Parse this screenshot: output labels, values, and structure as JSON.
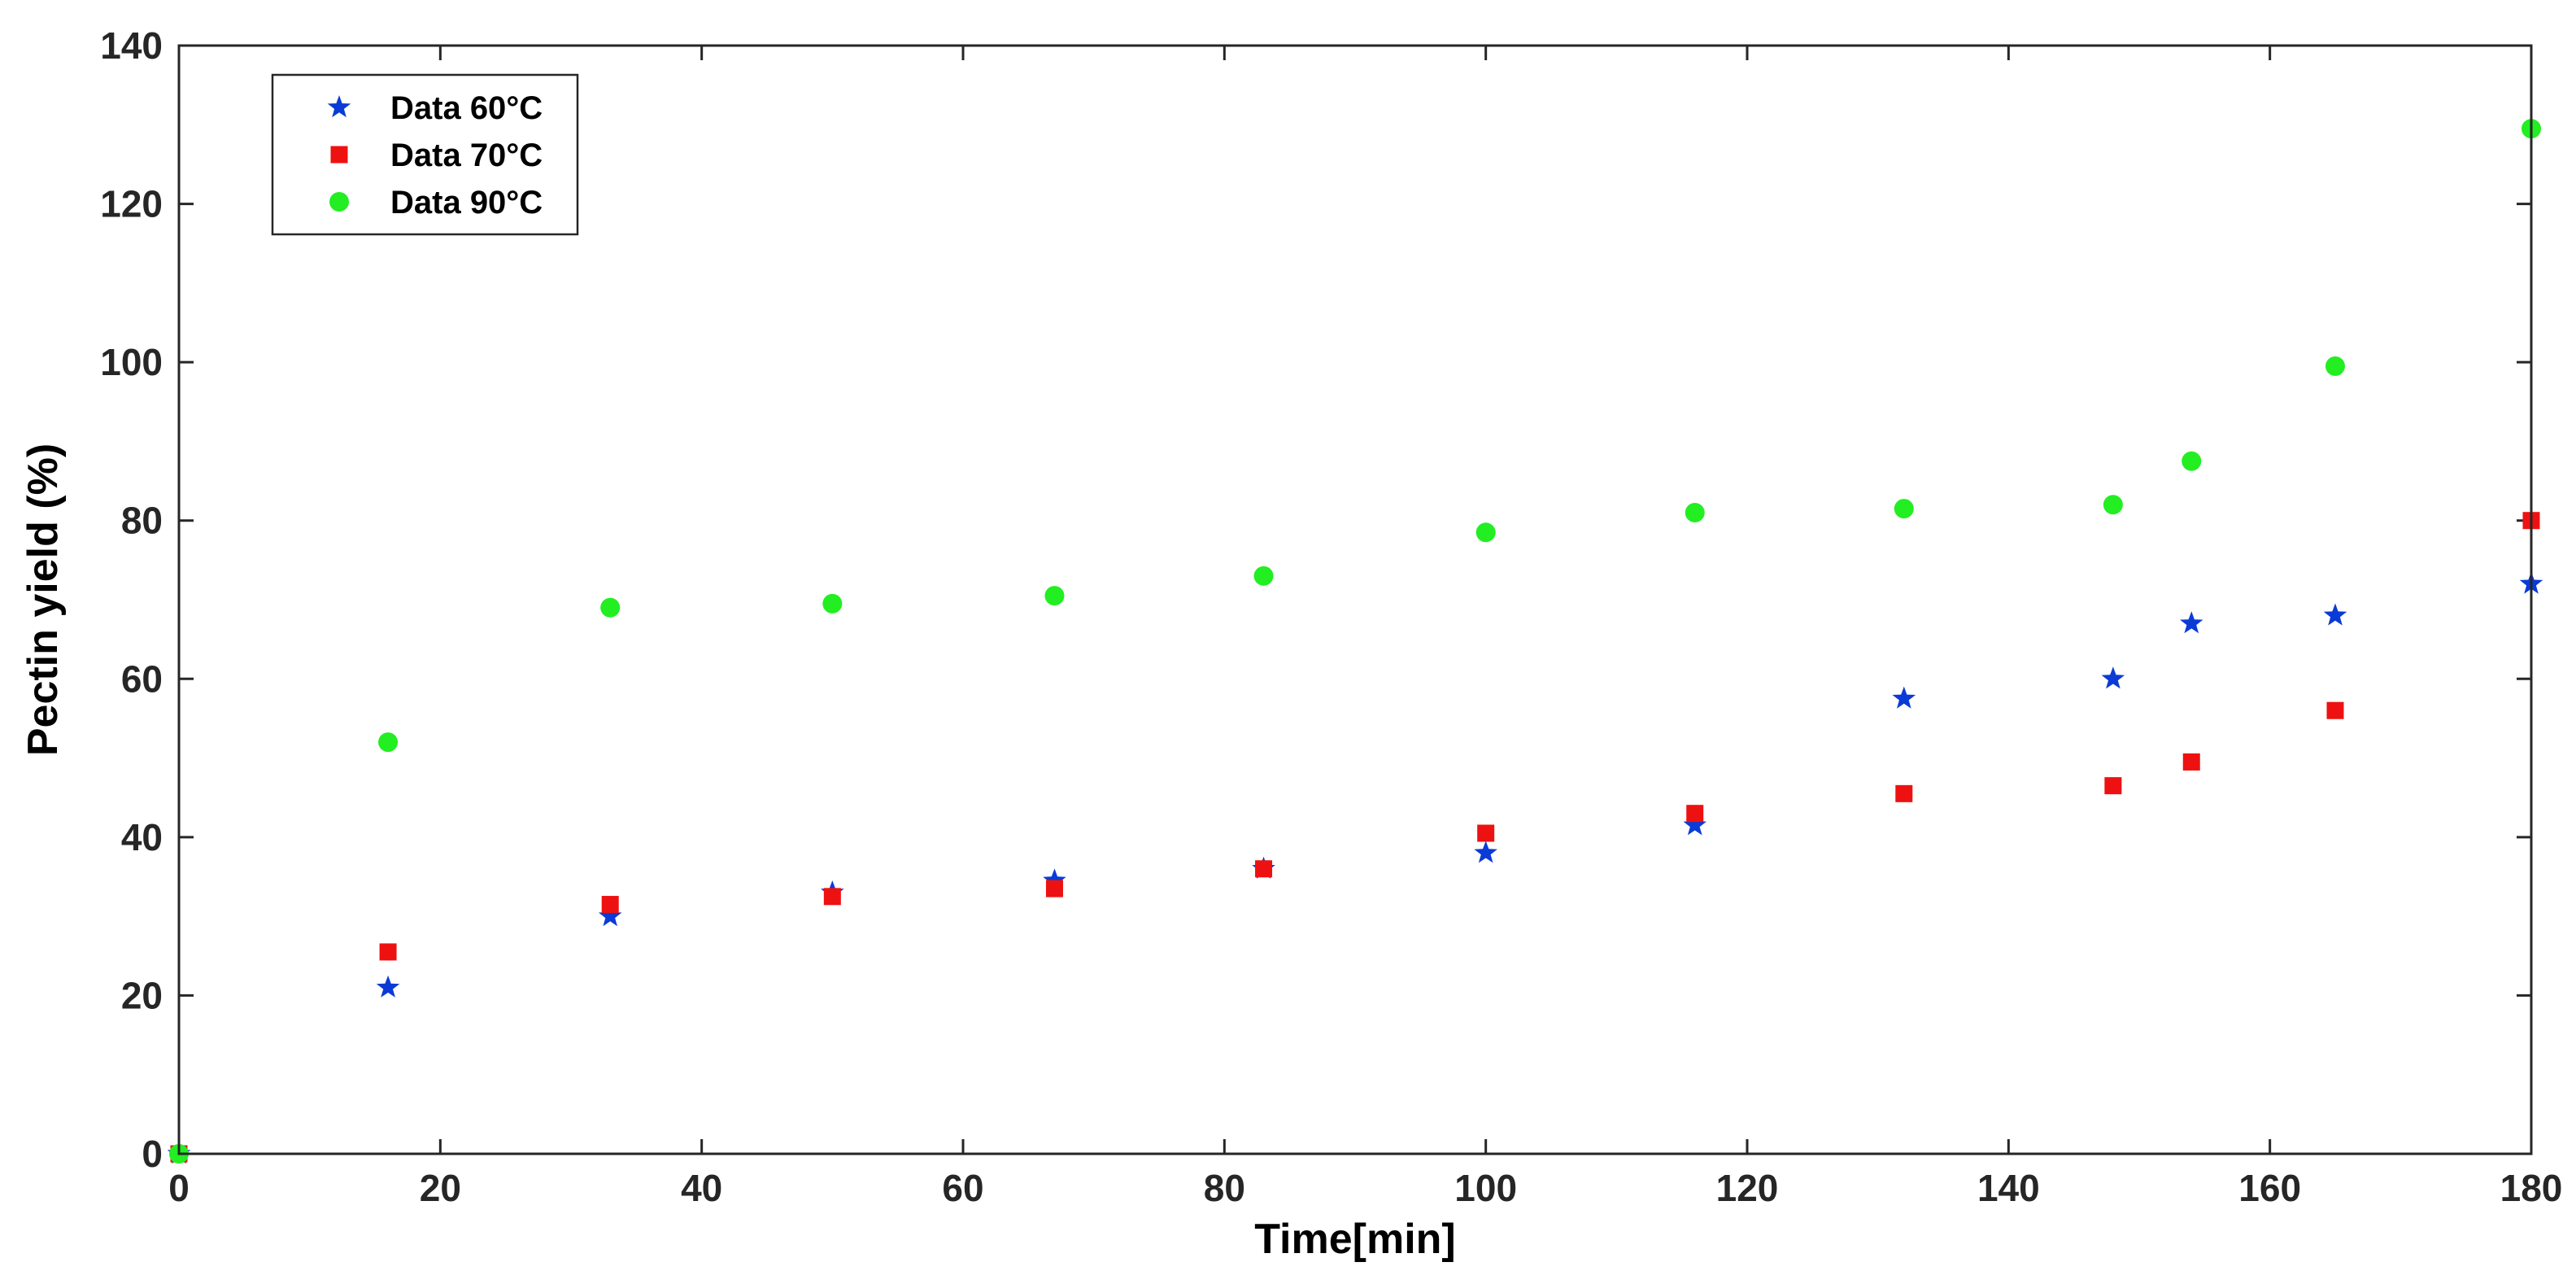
{
  "chart_data": {
    "type": "scatter",
    "xlabel": "Time[min]",
    "ylabel": "Pectin yield (%)",
    "xlim": [
      0,
      180
    ],
    "ylim": [
      0,
      140
    ],
    "xticks": [
      0,
      20,
      40,
      60,
      80,
      100,
      120,
      140,
      160,
      180
    ],
    "yticks": [
      0,
      20,
      40,
      60,
      80,
      100,
      120,
      140
    ],
    "grid": false,
    "legend_position": "top-left",
    "series": [
      {
        "name": "Data 60°C",
        "marker": "star",
        "color": "#0b3bd6",
        "x": [
          0,
          16,
          33,
          50,
          67,
          83,
          100,
          116,
          132,
          148,
          154,
          165,
          180
        ],
        "y": [
          0,
          21,
          30,
          33,
          34.5,
          36,
          38,
          41.5,
          57.5,
          60,
          67,
          68,
          72
        ]
      },
      {
        "name": "Data 70°C",
        "marker": "square",
        "color": "#ee1111",
        "x": [
          0,
          16,
          33,
          50,
          67,
          83,
          100,
          116,
          132,
          148,
          154,
          165,
          180
        ],
        "y": [
          0,
          25.5,
          31.5,
          32.5,
          33.5,
          36,
          40.5,
          43,
          45.5,
          46.5,
          49.5,
          56,
          80
        ]
      },
      {
        "name": "Data 90°C",
        "marker": "circle",
        "color": "#22ee22",
        "x": [
          0,
          16,
          33,
          50,
          67,
          83,
          100,
          116,
          132,
          148,
          154,
          165,
          180
        ],
        "y": [
          0,
          52,
          69,
          69.5,
          70.5,
          73,
          78.5,
          81,
          81.5,
          82,
          87.5,
          99.5,
          129.5
        ]
      }
    ]
  }
}
